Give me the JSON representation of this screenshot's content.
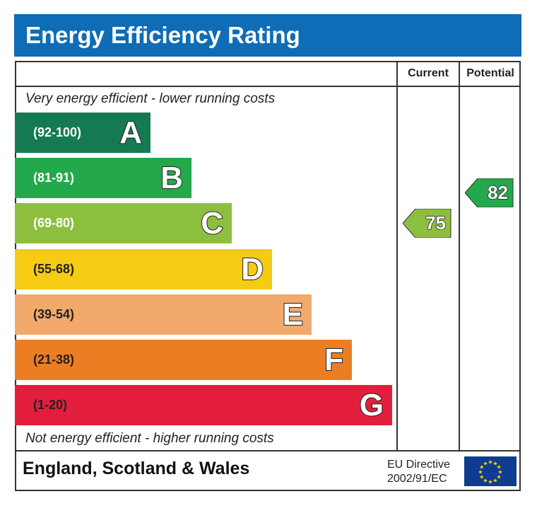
{
  "title": "Energy Efficiency Rating",
  "columns": {
    "current": "Current",
    "potential": "Potential"
  },
  "top_note": "Very energy efficient - lower running costs",
  "bottom_note": "Not energy efficient - higher running costs",
  "footer": {
    "region": "England, Scotland & Wales",
    "directive_line1": "EU Directive",
    "directive_line2": "2002/91/EC",
    "flag_icon": "eu-flag"
  },
  "chart_data": {
    "type": "bar",
    "categories": [
      "A",
      "B",
      "C",
      "D",
      "E",
      "F",
      "G"
    ],
    "bands": [
      {
        "letter": "A",
        "range": "(92-100)",
        "color": "#157a52"
      },
      {
        "letter": "B",
        "range": "(81-91)",
        "color": "#23a84b"
      },
      {
        "letter": "C",
        "range": "(69-80)",
        "color": "#8dbf3e"
      },
      {
        "letter": "D",
        "range": "(55-68)",
        "color": "#f5cb14"
      },
      {
        "letter": "E",
        "range": "(39-54)",
        "color": "#f2a96c"
      },
      {
        "letter": "F",
        "range": "(21-38)",
        "color": "#ed7d23"
      },
      {
        "letter": "G",
        "range": "(1-20)",
        "color": "#e31e3c"
      }
    ],
    "current": {
      "value": 75,
      "band": "C",
      "color": "#8dbf3e"
    },
    "potential": {
      "value": 82,
      "band": "B",
      "color": "#23a84b"
    }
  }
}
